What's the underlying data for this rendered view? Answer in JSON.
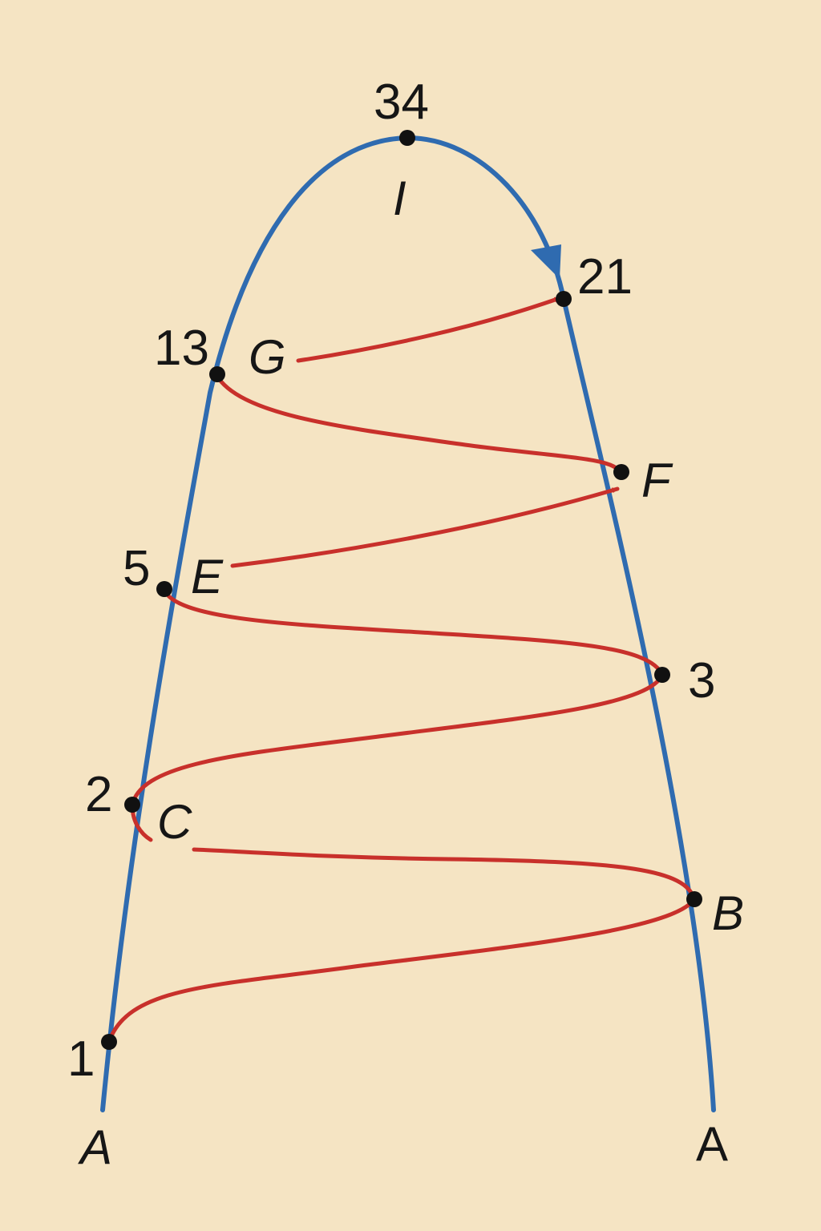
{
  "colors": {
    "background": "#f5e4c3",
    "outer_curve": "#2f6bb0",
    "inner_path": "#c8302b",
    "points": "#111111"
  },
  "numbers": {
    "n34": "34",
    "n21": "21",
    "n13": "13",
    "n5": "5",
    "n3": "3",
    "n2": "2",
    "n1": "1"
  },
  "letters": {
    "I": "I",
    "G": "G",
    "F": "F",
    "E": "E",
    "C": "C",
    "B": "B",
    "A_left": "A",
    "A_right": "A"
  }
}
